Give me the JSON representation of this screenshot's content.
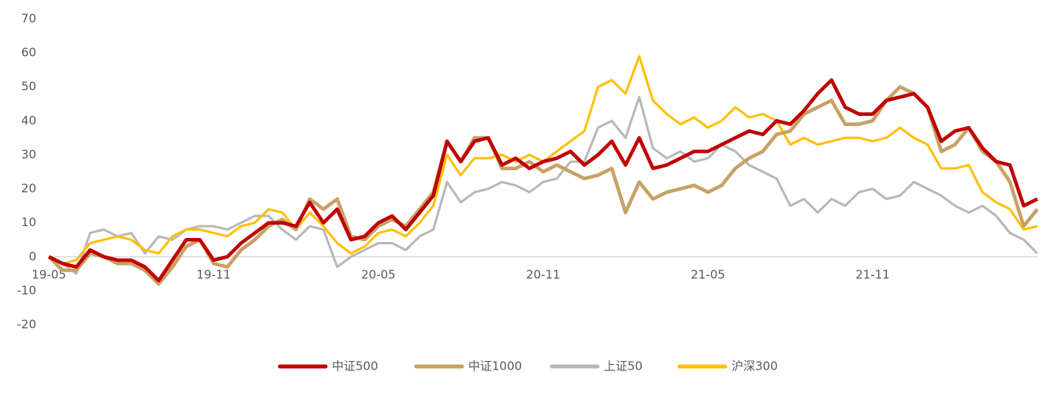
{
  "chart_data": {
    "type": "line",
    "categories": [
      "19-05",
      null,
      null,
      null,
      null,
      null,
      null,
      null,
      null,
      null,
      null,
      null,
      "19-11",
      null,
      null,
      null,
      null,
      null,
      null,
      null,
      null,
      null,
      null,
      null,
      "20-05",
      null,
      null,
      null,
      null,
      null,
      null,
      null,
      null,
      null,
      null,
      null,
      "20-11",
      null,
      null,
      null,
      null,
      null,
      null,
      null,
      null,
      null,
      null,
      null,
      "21-05",
      null,
      null,
      null,
      null,
      null,
      null,
      null,
      null,
      null,
      null,
      null,
      "21-11",
      null,
      null,
      null,
      null,
      null,
      null,
      null,
      null,
      null,
      null,
      null,
      null
    ],
    "ylim": [
      -20,
      70
    ],
    "yticks": [
      -20,
      -10,
      0,
      10,
      20,
      30,
      40,
      50,
      60,
      70
    ],
    "legend": "bottom",
    "series": [
      {
        "name": "中证500",
        "color": "#c00000",
        "values": [
          0,
          -2,
          -3,
          2,
          0,
          -1,
          -1,
          -3,
          -7,
          -1,
          5,
          5,
          -1,
          0,
          4,
          7,
          10,
          10,
          9,
          16,
          10,
          14,
          5,
          6,
          10,
          12,
          8,
          13,
          18,
          34,
          28,
          34,
          35,
          27,
          29,
          26,
          28,
          29,
          31,
          27,
          30,
          34,
          27,
          35,
          26,
          27,
          29,
          31,
          31,
          33,
          35,
          37,
          36,
          40,
          39,
          43,
          48,
          52,
          44,
          42,
          42,
          46,
          47,
          48,
          44,
          34,
          37,
          38,
          32,
          28,
          27,
          15,
          17
        ]
      },
      {
        "name": "中证1000",
        "color": "#c8a165",
        "values": [
          0,
          -4,
          -4,
          1,
          0,
          -2,
          -2,
          -4,
          -8,
          -3,
          3,
          5,
          -2,
          -3,
          2,
          5,
          9,
          11,
          8,
          17,
          14,
          17,
          6,
          5,
          9,
          11,
          9,
          14,
          19,
          34,
          28,
          35,
          35,
          26,
          26,
          28,
          25,
          27,
          25,
          23,
          24,
          26,
          13,
          22,
          17,
          19,
          20,
          21,
          19,
          21,
          26,
          29,
          31,
          36,
          37,
          42,
          44,
          46,
          39,
          39,
          40,
          46,
          50,
          48,
          44,
          31,
          33,
          38,
          31,
          28,
          22,
          9,
          14
        ]
      },
      {
        "name": "上证50",
        "color": "#b8b8b8",
        "values": [
          0,
          -2,
          -5,
          7,
          8,
          6,
          7,
          1,
          6,
          5,
          8,
          9,
          9,
          8,
          10,
          12,
          12,
          8,
          5,
          9,
          8,
          -3,
          0,
          2,
          4,
          4,
          2,
          6,
          8,
          22,
          16,
          19,
          20,
          22,
          21,
          19,
          22,
          23,
          28,
          28,
          38,
          40,
          35,
          47,
          32,
          29,
          31,
          28,
          29,
          33,
          31,
          27,
          25,
          23,
          15,
          17,
          13,
          17,
          15,
          19,
          20,
          17,
          18,
          22,
          20,
          18,
          15,
          13,
          15,
          12,
          7,
          5,
          1
        ]
      },
      {
        "name": "沪深300",
        "color": "#ffc000",
        "values": [
          0,
          -2,
          -1,
          4,
          5,
          6,
          5,
          2,
          1,
          6,
          8,
          8,
          7,
          6,
          9,
          10,
          14,
          13,
          8,
          13,
          9,
          4,
          1,
          3,
          7,
          8,
          6,
          10,
          15,
          30,
          24,
          29,
          29,
          30,
          28,
          30,
          28,
          31,
          34,
          37,
          50,
          52,
          48,
          59,
          46,
          42,
          39,
          41,
          38,
          40,
          44,
          41,
          42,
          40,
          33,
          35,
          33,
          34,
          35,
          35,
          34,
          35,
          38,
          35,
          33,
          26,
          26,
          27,
          19,
          16,
          14,
          8,
          9
        ]
      }
    ]
  }
}
